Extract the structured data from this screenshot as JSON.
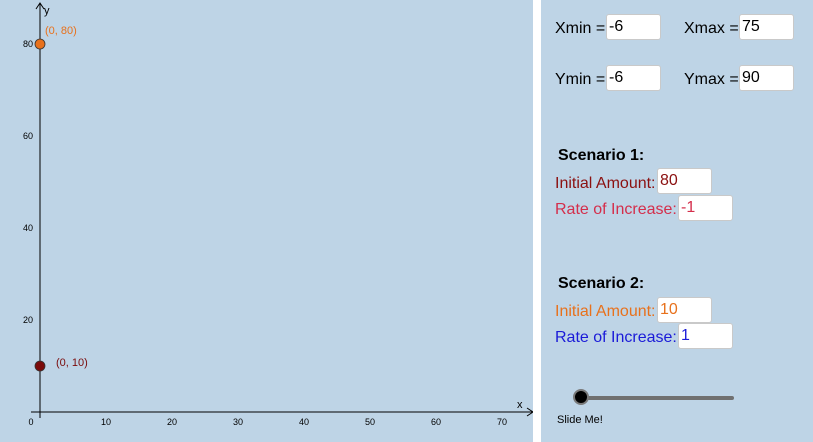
{
  "graph": {
    "axis_labels": {
      "x": "x",
      "y": "y"
    },
    "x_ticks": [
      {
        "value": 0,
        "label": "0"
      },
      {
        "value": 10,
        "label": "10"
      },
      {
        "value": 20,
        "label": "20"
      },
      {
        "value": 30,
        "label": "30"
      },
      {
        "value": 40,
        "label": "40"
      },
      {
        "value": 50,
        "label": "50"
      },
      {
        "value": 60,
        "label": "60"
      },
      {
        "value": 70,
        "label": "70"
      }
    ],
    "y_ticks": [
      {
        "value": 20,
        "label": "20"
      },
      {
        "value": 40,
        "label": "40"
      },
      {
        "value": 60,
        "label": "60"
      },
      {
        "value": 80,
        "label": "80"
      }
    ],
    "points": [
      {
        "x": 0,
        "y": 80,
        "label": "(0, 80)",
        "color": "#e8711c"
      },
      {
        "x": 0,
        "y": 10,
        "label": "(0, 10)",
        "color": "#7a0a0a"
      }
    ]
  },
  "window": {
    "xmin_label": "Xmin =",
    "xmin": "-6",
    "xmax_label": "Xmax =",
    "xmax": "75",
    "ymin_label": "Ymin =",
    "ymin": "-6",
    "ymax_label": "Ymax =",
    "ymax": "90"
  },
  "scenario1": {
    "title": "Scenario 1:",
    "initial_label": "Initial Amount:",
    "initial_value": "80",
    "rate_label": "Rate of Increase:",
    "rate_value": "-1",
    "initial_color": "#8b1010",
    "rate_color": "#d42e4b"
  },
  "scenario2": {
    "title": "Scenario 2:",
    "initial_label": "Initial Amount:",
    "initial_value": "10",
    "rate_label": "Rate of Increase:",
    "rate_value": "1",
    "initial_color": "#e8711c",
    "rate_color": "#1b1bd8"
  },
  "slider": {
    "label": "Slide Me!",
    "value_fraction": 0
  }
}
